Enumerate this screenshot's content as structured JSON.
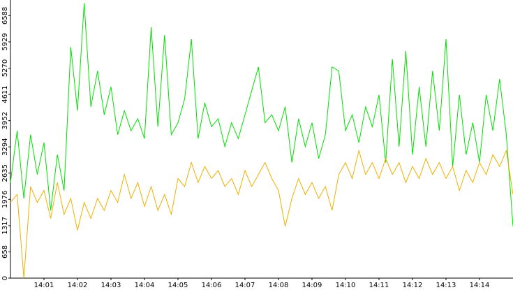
{
  "chart_data": {
    "type": "line",
    "x": [
      0,
      0.2,
      0.4,
      0.6,
      0.8,
      1,
      1.2,
      1.4,
      1.6,
      1.8,
      2,
      2.2,
      2.4,
      2.6,
      2.8,
      3,
      3.2,
      3.4,
      3.6,
      3.8,
      4,
      4.2,
      4.4,
      4.6,
      4.8,
      5,
      5.2,
      5.4,
      5.6,
      5.8,
      6,
      6.2,
      6.4,
      6.6,
      6.8,
      7,
      7.2,
      7.4,
      7.6,
      7.8,
      8,
      8.2,
      8.4,
      8.6,
      8.8,
      9,
      9.2,
      9.4,
      9.6,
      9.8,
      10,
      10.2,
      10.4,
      10.6,
      10.8,
      11,
      11.2,
      11.4,
      11.6,
      11.8,
      12,
      12.2,
      12.4,
      12.6,
      12.8,
      13,
      13.2,
      13.4,
      13.6,
      13.8,
      14,
      14.2,
      14.4,
      14.6,
      14.8,
      15
    ],
    "series": [
      {
        "color": "#00e000",
        "values": [
          2400,
          3700,
          2000,
          3600,
          2600,
          3400,
          1700,
          3100,
          2200,
          5800,
          4200,
          6900,
          4300,
          5200,
          4100,
          4800,
          3600,
          4200,
          3700,
          4000,
          3500,
          6300,
          3800,
          6100,
          3600,
          3900,
          4500,
          6000,
          3500,
          4400,
          3800,
          4000,
          3300,
          3900,
          3500,
          4100,
          4700,
          5300,
          3900,
          4100,
          3700,
          4300,
          2900,
          4000,
          3300,
          3900,
          3000,
          3600,
          5300,
          5200,
          3700,
          4100,
          3400,
          4300,
          3800,
          4600,
          2900,
          5500,
          3300,
          5700,
          3100,
          4800,
          3300,
          5200,
          3700,
          6000,
          2800,
          4600,
          3100,
          3900,
          2900,
          4600,
          3700,
          5000,
          3600,
          1300
        ]
      },
      {
        "color": "#f0b000",
        "values": [
          1900,
          2100,
          0,
          2300,
          1900,
          2200,
          1500,
          2400,
          1600,
          2000,
          1200,
          1900,
          1500,
          2000,
          1700,
          2200,
          1900,
          2600,
          2000,
          2400,
          1800,
          2300,
          1700,
          2100,
          1600,
          2500,
          2300,
          2900,
          2400,
          2800,
          2500,
          2700,
          2300,
          2500,
          2100,
          2700,
          2300,
          2600,
          2900,
          2500,
          2200,
          1300,
          2000,
          2500,
          2100,
          2400,
          2000,
          2300,
          1700,
          2600,
          2900,
          2500,
          3200,
          2600,
          2900,
          2500,
          3000,
          2600,
          2900,
          2400,
          2800,
          2500,
          3000,
          2600,
          2900,
          2500,
          2800,
          2200,
          2700,
          2400,
          2900,
          2600,
          3100,
          2800,
          3200,
          2100
        ]
      }
    ],
    "xlim": [
      0,
      15
    ],
    "xticks": [
      {
        "value": 1,
        "label": "14:01"
      },
      {
        "value": 2,
        "label": "14:02"
      },
      {
        "value": 3,
        "label": "14:03"
      },
      {
        "value": 4,
        "label": "14:04"
      },
      {
        "value": 5,
        "label": "14:05"
      },
      {
        "value": 6,
        "label": "14:06"
      },
      {
        "value": 7,
        "label": "14:07"
      },
      {
        "value": 8,
        "label": "14:08"
      },
      {
        "value": 9,
        "label": "14:09"
      },
      {
        "value": 10,
        "label": "14:10"
      },
      {
        "value": 11,
        "label": "14:11"
      },
      {
        "value": 12,
        "label": "14:12"
      },
      {
        "value": 13,
        "label": "14:13"
      },
      {
        "value": 14,
        "label": "14:14"
      }
    ],
    "ylim": [
      0,
      6980
    ],
    "yticks": [
      0,
      658,
      1317,
      1976,
      2635,
      3294,
      3952,
      4611,
      5270,
      5929,
      6588
    ]
  }
}
